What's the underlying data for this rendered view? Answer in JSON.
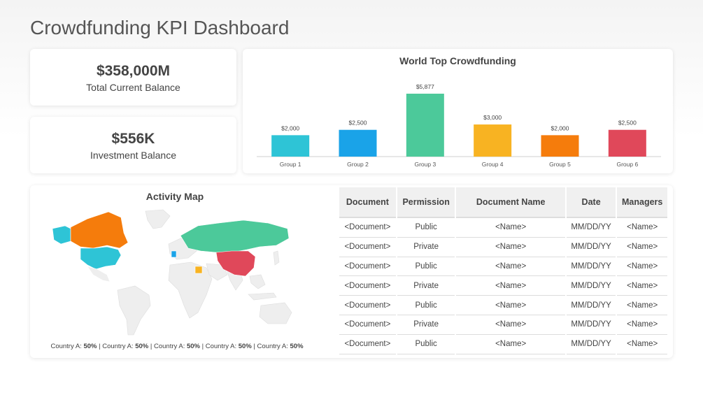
{
  "page": {
    "title": "Crowdfunding KPI Dashboard"
  },
  "kpis": [
    {
      "value": "$358,000M",
      "label": "Total Current Balance"
    },
    {
      "value": "$556K",
      "label": "Investment Balance"
    }
  ],
  "chart_data": {
    "type": "bar",
    "title": "World Top Crowdfunding",
    "categories": [
      "Group 1",
      "Group 2",
      "Group 3",
      "Group 4",
      "Group 5",
      "Group 6"
    ],
    "values": [
      2000,
      2500,
      5877,
      3000,
      2000,
      2500
    ],
    "data_labels": [
      "$2,000",
      "$2,500",
      "$5,877",
      "$3,000",
      "$2,000",
      "$2,500"
    ],
    "colors": [
      "#2ec4d6",
      "#1aa3e8",
      "#4cc99a",
      "#f8b322",
      "#f57c0c",
      "#e0485a"
    ],
    "ylim": [
      0,
      5877
    ],
    "grid": false,
    "legend": "none"
  },
  "map": {
    "title": "Activity Map",
    "legend": [
      {
        "country": "Country A:",
        "pct": "50%"
      },
      {
        "country": "Country A:",
        "pct": "50%"
      },
      {
        "country": "Country A:",
        "pct": "50%"
      },
      {
        "country": "Country A:",
        "pct": "50%"
      },
      {
        "country": "Country A:",
        "pct": "50%"
      }
    ],
    "colors": {
      "land": "#eeeeee",
      "alaska": "#2ec4d6",
      "canada": "#f57c0c",
      "usa": "#2ec4d6",
      "russia": "#4cc99a",
      "china": "#e0485a",
      "europe_small": "#1aa3e8",
      "egypt": "#f8b322"
    }
  },
  "table": {
    "headers": [
      "Document",
      "Permission",
      "Document Name",
      "Date",
      "Managers"
    ],
    "rows": [
      [
        "<Document>",
        "Public",
        "<Name>",
        "MM/DD/YY",
        "<Name>"
      ],
      [
        "<Document>",
        "Private",
        "<Name>",
        "MM/DD/YY",
        "<Name>"
      ],
      [
        "<Document>",
        "Public",
        "<Name>",
        "MM/DD/YY",
        "<Name>"
      ],
      [
        "<Document>",
        "Private",
        "<Name>",
        "MM/DD/YY",
        "<Name>"
      ],
      [
        "<Document>",
        "Public",
        "<Name>",
        "MM/DD/YY",
        "<Name>"
      ],
      [
        "<Document>",
        "Private",
        "<Name>",
        "MM/DD/YY",
        "<Name>"
      ],
      [
        "<Document>",
        "Public",
        "<Name>",
        "MM/DD/YY",
        "<Name>"
      ]
    ]
  }
}
